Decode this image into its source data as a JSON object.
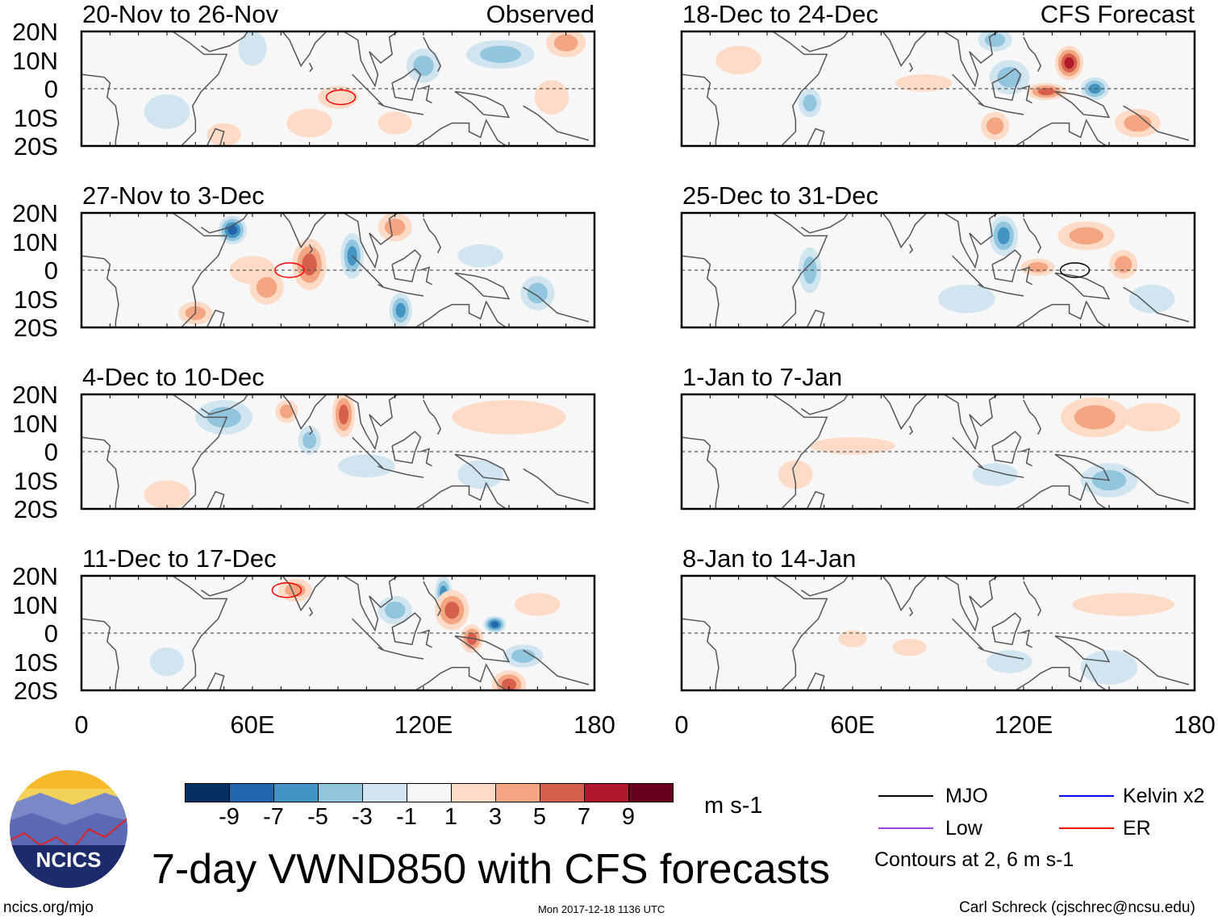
{
  "colorbar": {
    "colors": [
      "#053061",
      "#2166ac",
      "#4393c3",
      "#92c5de",
      "#d1e5f0",
      "#f7f7f7",
      "#fddbc7",
      "#f4a582",
      "#d6604d",
      "#b2182b",
      "#67001f"
    ],
    "labels": [
      "-9",
      "-7",
      "-5",
      "-3",
      "-1",
      "1",
      "3",
      "5",
      "7",
      "9"
    ],
    "units": "m s-1"
  },
  "title": "7-day VWND850 with CFS forecasts",
  "logo_text": "NCICS",
  "footer": {
    "left": "ncics.org/mjo",
    "center": "Mon 2017-12-18 1136 UTC",
    "right": "Carl Schreck (cjschrec@ncsu.edu)"
  },
  "legend": {
    "items": [
      {
        "label": "MJO",
        "color": "#000000"
      },
      {
        "label": "Kelvin x2",
        "color": "#0000ff"
      },
      {
        "label": "Low",
        "color": "#a040e0"
      },
      {
        "label": "ER",
        "color": "#ff0000"
      }
    ],
    "note": "Contours at 2, 6 m s-1"
  },
  "chart_data": {
    "type": "heatmap",
    "xlim": [
      0,
      180
    ],
    "ylim": [
      -20,
      20
    ],
    "xticks": [
      "0",
      "60E",
      "120E",
      "180"
    ],
    "yticks": [
      "20N",
      "10N",
      "0",
      "10S",
      "20S"
    ],
    "columns": [
      {
        "label": "Observed"
      },
      {
        "label": "CFS Forecast"
      }
    ],
    "panels": [
      {
        "title": "20-Nov to 26-Nov",
        "col": 0,
        "row": 0,
        "blobs": [
          [
            90,
            -3,
            7,
            4,
            2
          ],
          [
            147,
            12,
            12,
            5,
            -3
          ],
          [
            120,
            8,
            6,
            6,
            -3
          ],
          [
            60,
            14,
            5,
            6,
            -2
          ],
          [
            80,
            -12,
            8,
            5,
            2
          ],
          [
            170,
            16,
            7,
            5,
            3
          ],
          [
            30,
            -8,
            8,
            6,
            -2
          ],
          [
            110,
            -12,
            6,
            4,
            2
          ],
          [
            165,
            -3,
            6,
            6,
            2
          ],
          [
            50,
            -16,
            6,
            4,
            2
          ]
        ]
      },
      {
        "title": "18-Dec to 24-Dec",
        "col": 1,
        "row": 0,
        "blobs": [
          [
            136,
            9,
            5,
            6,
            8
          ],
          [
            128,
            -1,
            7,
            3,
            6
          ],
          [
            110,
            -13,
            5,
            5,
            4
          ],
          [
            145,
            0,
            5,
            4,
            -5
          ],
          [
            115,
            4,
            7,
            6,
            -4
          ],
          [
            45,
            -5,
            4,
            5,
            -4
          ],
          [
            160,
            -12,
            8,
            5,
            4
          ],
          [
            110,
            17,
            6,
            4,
            -4
          ],
          [
            20,
            10,
            8,
            5,
            2
          ],
          [
            85,
            2,
            10,
            3,
            2
          ]
        ]
      },
      {
        "title": "27-Nov to 3-Dec",
        "col": 0,
        "row": 1,
        "blobs": [
          [
            53,
            14,
            5,
            5,
            -7
          ],
          [
            80,
            2,
            6,
            9,
            5
          ],
          [
            95,
            5,
            4,
            8,
            -5
          ],
          [
            112,
            -14,
            4,
            6,
            -5
          ],
          [
            60,
            0,
            8,
            5,
            2
          ],
          [
            65,
            -6,
            6,
            6,
            3
          ],
          [
            160,
            -8,
            6,
            6,
            -3
          ],
          [
            110,
            15,
            6,
            5,
            3
          ],
          [
            140,
            5,
            8,
            4,
            -2
          ],
          [
            40,
            -15,
            6,
            4,
            3
          ]
        ]
      },
      {
        "title": "25-Dec to 31-Dec",
        "col": 1,
        "row": 1,
        "blobs": [
          [
            113,
            12,
            5,
            7,
            -6
          ],
          [
            142,
            12,
            10,
            5,
            4
          ],
          [
            155,
            2,
            5,
            5,
            3
          ],
          [
            125,
            1,
            6,
            3,
            4
          ],
          [
            45,
            0,
            4,
            8,
            -3
          ],
          [
            100,
            -10,
            10,
            5,
            -2
          ],
          [
            165,
            -10,
            8,
            5,
            -2
          ]
        ]
      },
      {
        "title": "4-Dec to 10-Dec",
        "col": 0,
        "row": 2,
        "blobs": [
          [
            50,
            12,
            10,
            6,
            -4
          ],
          [
            92,
            13,
            4,
            8,
            6
          ],
          [
            72,
            14,
            4,
            4,
            4
          ],
          [
            80,
            4,
            4,
            5,
            -3
          ],
          [
            150,
            12,
            20,
            6,
            2
          ],
          [
            100,
            -5,
            10,
            4,
            -2
          ],
          [
            140,
            -8,
            8,
            5,
            -2
          ],
          [
            30,
            -15,
            8,
            5,
            2
          ]
        ]
      },
      {
        "title": "1-Jan to 7-Jan",
        "col": 1,
        "row": 2,
        "blobs": [
          [
            145,
            12,
            12,
            7,
            4
          ],
          [
            165,
            12,
            10,
            5,
            2
          ],
          [
            60,
            2,
            15,
            3,
            2
          ],
          [
            150,
            -10,
            10,
            6,
            -3
          ],
          [
            110,
            -8,
            8,
            4,
            -2
          ],
          [
            40,
            -8,
            6,
            5,
            2
          ]
        ]
      },
      {
        "title": "11-Dec to 17-Dec",
        "col": 0,
        "row": 3,
        "blobs": [
          [
            130,
            8,
            6,
            7,
            6
          ],
          [
            137,
            -2,
            4,
            5,
            5
          ],
          [
            145,
            3,
            4,
            3,
            -7
          ],
          [
            127,
            14,
            3,
            6,
            -5
          ],
          [
            75,
            15,
            6,
            4,
            4
          ],
          [
            150,
            -18,
            6,
            5,
            5
          ],
          [
            155,
            -8,
            7,
            4,
            -4
          ],
          [
            160,
            10,
            8,
            4,
            2
          ],
          [
            110,
            8,
            6,
            5,
            -3
          ],
          [
            30,
            -10,
            6,
            5,
            -2
          ]
        ]
      },
      {
        "title": "8-Jan to 14-Jan",
        "col": 1,
        "row": 3,
        "blobs": [
          [
            155,
            10,
            18,
            4,
            2
          ],
          [
            150,
            -12,
            10,
            6,
            -2
          ],
          [
            60,
            -2,
            5,
            3,
            2
          ],
          [
            115,
            -10,
            8,
            4,
            -2
          ],
          [
            80,
            -5,
            6,
            3,
            2
          ]
        ]
      }
    ],
    "contours": [
      {
        "panel": 0,
        "type": "ER",
        "lon": 91,
        "lat": -3
      },
      {
        "panel": 2,
        "type": "ER",
        "lon": 73,
        "lat": 0
      },
      {
        "panel": 6,
        "type": "ER",
        "lon": 72,
        "lat": 15
      },
      {
        "panel": 3,
        "type": "MJO",
        "lon": 138,
        "lat": 0
      }
    ]
  }
}
